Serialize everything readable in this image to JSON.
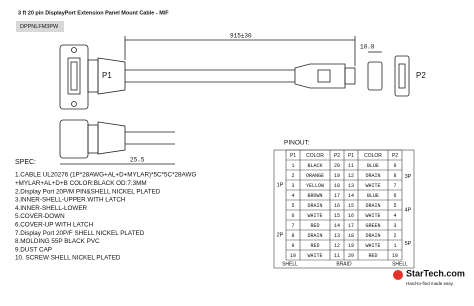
{
  "header": {
    "title": "3 ft 20 pin DisplayPort Extension Panel Mount Cable - M/F",
    "part_number": "DPPNLFM3PW"
  },
  "drawing": {
    "length": "915±30",
    "cap_length": "10.8",
    "width": "25.5",
    "left_label": "P1",
    "right_label": "P2"
  },
  "spec": {
    "heading": "SPEC:",
    "items": [
      "1.CABLE UL20276 (1P*28AWG+AL+D+MYLAR)*5C*5C*28AWG",
      "+MYLAR+AL+D+B COLOR:BLACK OD:7.3MM",
      "2.Display Port 20P/M PIN&SHELL NICKEL PLATED",
      "3.INNER-SHELL-UPPER WITH LATCH",
      "4.INNER-SHELL-LOWER",
      "5.COVER-DOWN",
      "6.COVER-UP WITH LATCH",
      "7.Display Port 20P/F SHELL NICKEL PLATED",
      "8.MOLDING 55P BLACK PVC",
      "9.DUST CAP",
      "10. SCREW SHELL NICKEL PLATED"
    ]
  },
  "pinout": {
    "heading": "PINOUT:",
    "columns": [
      "P1",
      "COLOR",
      "P2",
      "P1",
      "COLOR",
      "P2"
    ],
    "rows": [
      [
        "1",
        "BLACK",
        "20",
        "11",
        "BLUE",
        "9"
      ],
      [
        "2",
        "ORANGE",
        "19",
        "12",
        "DRAIN",
        "8"
      ],
      [
        "3",
        "YELLOW",
        "18",
        "13",
        "WHITE",
        "7"
      ],
      [
        "4",
        "BROWN",
        "17",
        "14",
        "BLUE",
        "6"
      ],
      [
        "5",
        "DRAIN",
        "16",
        "15",
        "DRAIN",
        "5"
      ],
      [
        "6",
        "WHITE",
        "15",
        "16",
        "WHITE",
        "4"
      ],
      [
        "7",
        "RED",
        "14",
        "17",
        "GREEN",
        "3"
      ],
      [
        "8",
        "DRAIN",
        "13",
        "18",
        "DRAIN",
        "2"
      ],
      [
        "9",
        "RED",
        "12",
        "19",
        "WHITE",
        "1"
      ],
      [
        "10",
        "WHITE",
        "11",
        "20",
        "RED",
        "10"
      ]
    ],
    "left_groups": [
      "1P",
      "2P"
    ],
    "right_groups": [
      "3P",
      "4P",
      "5P"
    ],
    "footer": [
      "SHELL",
      "BRAID",
      "SHELL"
    ]
  },
  "logo": {
    "text": "StarTech.com",
    "tagline": "Hard-to-find made easy."
  }
}
